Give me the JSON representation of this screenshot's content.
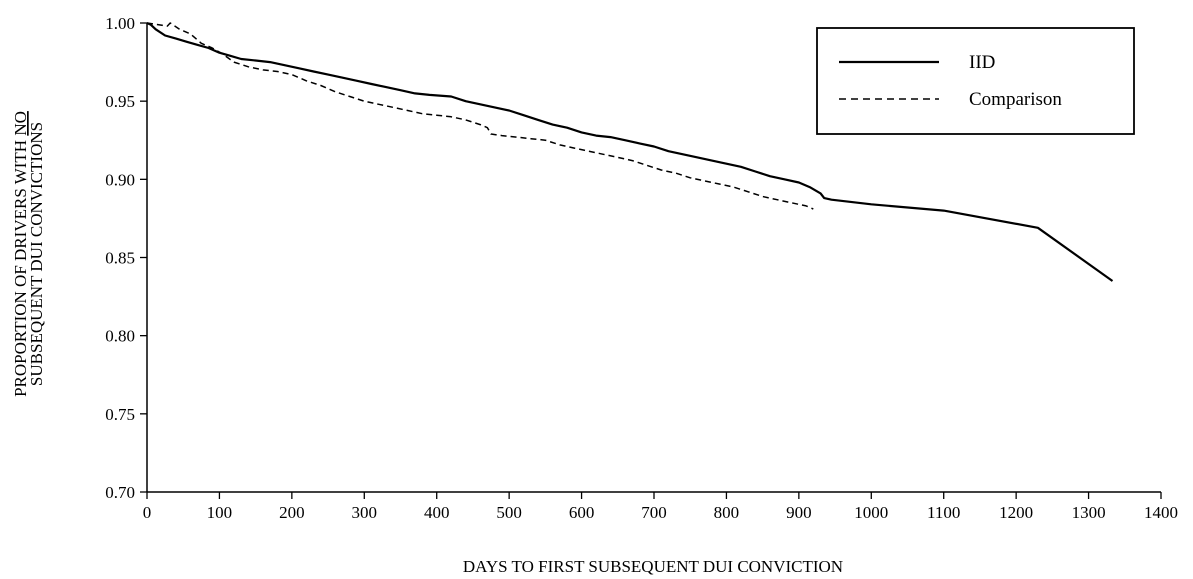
{
  "chart_data": {
    "type": "line",
    "title": "",
    "xlabel": "DAYS TO FIRST SUBSEQUENT DUI CONVICTION",
    "ylabel_line1": "PROPORTION OF DRIVERS WITH NO",
    "ylabel_line1_underlined": "NO",
    "ylabel_line2": "SUBSEQUENT DUI CONVICTIONS",
    "xlim": [
      0,
      1400
    ],
    "ylim": [
      0.7,
      1.0
    ],
    "x_ticks": [
      "0",
      "100",
      "200",
      "300",
      "400",
      "500",
      "600",
      "700",
      "800",
      "900",
      "1000",
      "1100",
      "1200",
      "1300",
      "1400"
    ],
    "y_ticks": [
      "0.70",
      "0.75",
      "0.80",
      "0.85",
      "0.90",
      "0.95",
      "1.00"
    ],
    "grid": false,
    "legend_position": "top-right",
    "series": [
      {
        "name": "IID",
        "style": "solid",
        "color": "#000000",
        "points": [
          [
            0,
            1.0
          ],
          [
            5,
            0.999
          ],
          [
            12,
            0.996
          ],
          [
            25,
            0.992
          ],
          [
            40,
            0.99
          ],
          [
            55,
            0.988
          ],
          [
            70,
            0.986
          ],
          [
            85,
            0.984
          ],
          [
            100,
            0.981
          ],
          [
            115,
            0.979
          ],
          [
            130,
            0.977
          ],
          [
            150,
            0.976
          ],
          [
            170,
            0.975
          ],
          [
            190,
            0.973
          ],
          [
            210,
            0.971
          ],
          [
            230,
            0.969
          ],
          [
            250,
            0.967
          ],
          [
            270,
            0.965
          ],
          [
            290,
            0.963
          ],
          [
            310,
            0.961
          ],
          [
            330,
            0.959
          ],
          [
            350,
            0.957
          ],
          [
            370,
            0.955
          ],
          [
            390,
            0.954
          ],
          [
            420,
            0.953
          ],
          [
            440,
            0.95
          ],
          [
            460,
            0.948
          ],
          [
            480,
            0.946
          ],
          [
            500,
            0.944
          ],
          [
            520,
            0.941
          ],
          [
            540,
            0.938
          ],
          [
            560,
            0.935
          ],
          [
            580,
            0.933
          ],
          [
            600,
            0.93
          ],
          [
            620,
            0.928
          ],
          [
            640,
            0.927
          ],
          [
            660,
            0.925
          ],
          [
            680,
            0.923
          ],
          [
            700,
            0.921
          ],
          [
            720,
            0.918
          ],
          [
            740,
            0.916
          ],
          [
            760,
            0.914
          ],
          [
            780,
            0.912
          ],
          [
            800,
            0.91
          ],
          [
            820,
            0.908
          ],
          [
            840,
            0.905
          ],
          [
            860,
            0.902
          ],
          [
            880,
            0.9
          ],
          [
            900,
            0.898
          ],
          [
            915,
            0.895
          ],
          [
            930,
            0.891
          ],
          [
            935,
            0.888
          ],
          [
            945,
            0.887
          ],
          [
            1000,
            0.884
          ],
          [
            1100,
            0.88
          ],
          [
            1230,
            0.869
          ],
          [
            1333,
            0.835
          ]
        ]
      },
      {
        "name": "Comparison",
        "style": "dashed",
        "color": "#000000",
        "points": [
          [
            0,
            1.0
          ],
          [
            15,
            0.999
          ],
          [
            28,
            0.998
          ],
          [
            32,
            1.0
          ],
          [
            45,
            0.996
          ],
          [
            60,
            0.993
          ],
          [
            75,
            0.987
          ],
          [
            90,
            0.984
          ],
          [
            105,
            0.98
          ],
          [
            120,
            0.975
          ],
          [
            140,
            0.972
          ],
          [
            160,
            0.97
          ],
          [
            180,
            0.969
          ],
          [
            200,
            0.967
          ],
          [
            220,
            0.963
          ],
          [
            240,
            0.96
          ],
          [
            260,
            0.956
          ],
          [
            280,
            0.953
          ],
          [
            300,
            0.95
          ],
          [
            320,
            0.948
          ],
          [
            340,
            0.946
          ],
          [
            360,
            0.944
          ],
          [
            380,
            0.942
          ],
          [
            400,
            0.941
          ],
          [
            420,
            0.94
          ],
          [
            440,
            0.938
          ],
          [
            460,
            0.935
          ],
          [
            470,
            0.933
          ],
          [
            475,
            0.929
          ],
          [
            490,
            0.928
          ],
          [
            510,
            0.927
          ],
          [
            530,
            0.926
          ],
          [
            550,
            0.925
          ],
          [
            570,
            0.922
          ],
          [
            590,
            0.92
          ],
          [
            610,
            0.918
          ],
          [
            630,
            0.916
          ],
          [
            650,
            0.914
          ],
          [
            670,
            0.912
          ],
          [
            690,
            0.909
          ],
          [
            710,
            0.906
          ],
          [
            730,
            0.904
          ],
          [
            750,
            0.901
          ],
          [
            770,
            0.899
          ],
          [
            790,
            0.897
          ],
          [
            810,
            0.895
          ],
          [
            830,
            0.892
          ],
          [
            850,
            0.889
          ],
          [
            870,
            0.887
          ],
          [
            890,
            0.885
          ],
          [
            910,
            0.883
          ],
          [
            920,
            0.881
          ]
        ]
      }
    ]
  }
}
